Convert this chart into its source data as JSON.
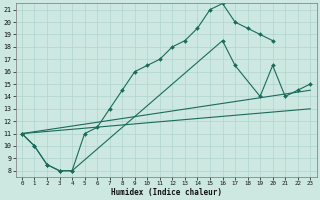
{
  "xlabel": "Humidex (Indice chaleur)",
  "bg_color": "#cce8e0",
  "line_color": "#1a6b5a",
  "grid_color": "#b0d4cc",
  "xlim": [
    -0.5,
    23.5
  ],
  "ylim": [
    7.5,
    21.5
  ],
  "xticks": [
    0,
    1,
    2,
    3,
    4,
    5,
    6,
    7,
    8,
    9,
    10,
    11,
    12,
    13,
    14,
    15,
    16,
    17,
    18,
    19,
    20,
    21,
    22,
    23
  ],
  "yticks": [
    8,
    9,
    10,
    11,
    12,
    13,
    14,
    15,
    16,
    17,
    18,
    19,
    20,
    21
  ],
  "line1_x": [
    0,
    1,
    2,
    3,
    4,
    5,
    6,
    7,
    8,
    9,
    10,
    11,
    12,
    13,
    14,
    15,
    16,
    17,
    18,
    19,
    20
  ],
  "line1_y": [
    11,
    10,
    8.5,
    8,
    8,
    11,
    11.5,
    13,
    14.5,
    16,
    16.5,
    17,
    18,
    18.5,
    19.5,
    21,
    21.5,
    20,
    19.5,
    19,
    18.5
  ],
  "line2_x": [
    0,
    1,
    2,
    3,
    4,
    16,
    17,
    19,
    20,
    21,
    22,
    23
  ],
  "line2_y": [
    11,
    10,
    8.5,
    8,
    8,
    18.5,
    16.5,
    14,
    16.5,
    14,
    14.5,
    15
  ],
  "line3_x": [
    0,
    23
  ],
  "line3_y": [
    11,
    14.5
  ],
  "line4_x": [
    0,
    23
  ],
  "line4_y": [
    11,
    13
  ]
}
